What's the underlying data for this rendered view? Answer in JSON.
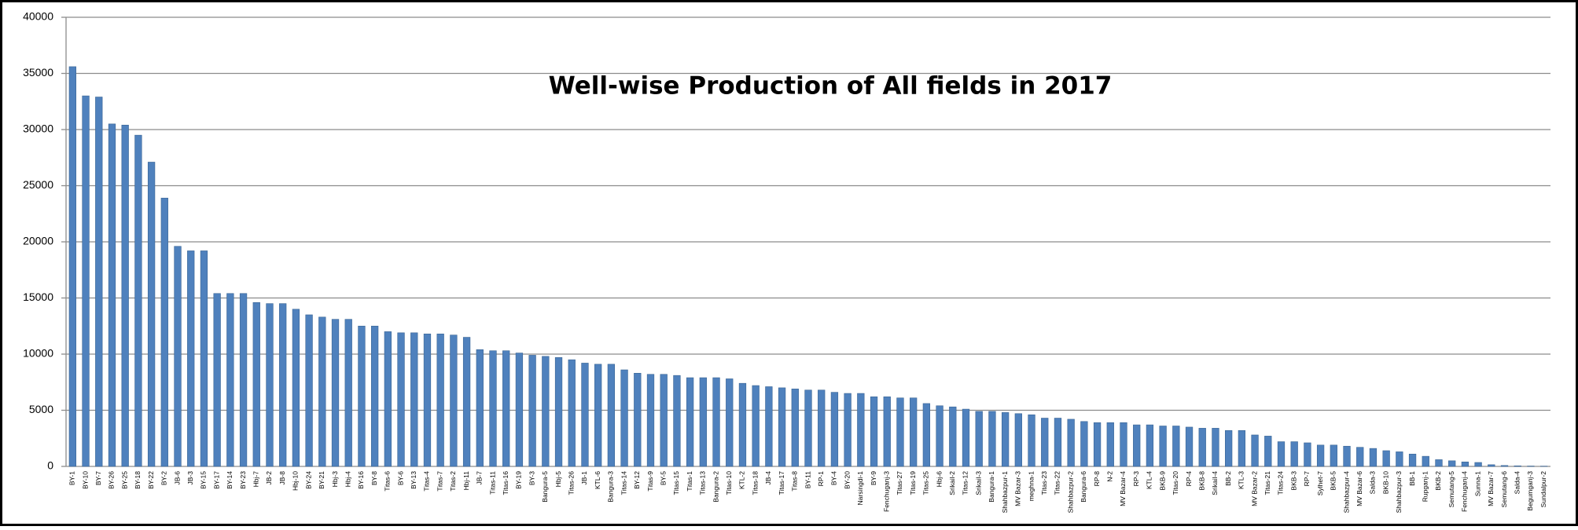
{
  "chart_data": {
    "type": "bar",
    "title": "Well-wise Production of All fields in 2017",
    "categories": [
      "BY-1",
      "BY-10",
      "BY-7",
      "BY-26",
      "BY-25",
      "BY-18",
      "BY-22",
      "BY-2",
      "JB-6",
      "JB-3",
      "BY-15",
      "BY-17",
      "BY-14",
      "BY-23",
      "Hbj-7",
      "JB-2",
      "JB-8",
      "Hbj-10",
      "BY-24",
      "BY-21",
      "Hbj-3",
      "Hbj-4",
      "BY-16",
      "BY-8",
      "Titas-6",
      "BY-6",
      "BY-13",
      "Titas-4",
      "Titas-7",
      "Titas-2",
      "Hbj-11",
      "JB-7",
      "Titas-11",
      "Titas-16",
      "BY-19",
      "BY-3",
      "Bangura-5",
      "Hbj-5",
      "Titas-26",
      "JB-1",
      "KTL-6",
      "Bangura-3",
      "Titas-14",
      "BY-12",
      "Titas-9",
      "BY-5",
      "Titas-15",
      "Titas-1",
      "Titas-13",
      "Bangura-2",
      "Titas-10",
      "KTL-2",
      "Titas-18",
      "JB-4",
      "Titas-17",
      "Titas-8",
      "BY-11",
      "RP-1",
      "BY-4",
      "BY-20",
      "Narsingdi-1",
      "BY-9",
      "Fenchuganj-3",
      "Titas-27",
      "Titas-19",
      "Titas-25",
      "Hbj-6",
      "Srikail-2",
      "Titas-12",
      "Srikail-3",
      "Bangura-1",
      "Shahbazpur-1",
      "MV Bazar-3",
      "meghna-1",
      "Titas-23",
      "Titas-22",
      "Shahbazpur-2",
      "Bangura-6",
      "RP-8",
      "N-2",
      "MV Bazar-4",
      "RP-3",
      "KTL-4",
      "BKB-9",
      "Titas-20",
      "RP-4",
      "BKB-8",
      "Srikail-4",
      "BB-2",
      "KTL-3",
      "MV Bazar-2",
      "Titas-21",
      "Titas-24",
      "BKB-3",
      "RP-7",
      "Sylhet-7",
      "BKB-5",
      "Shahbazpur-4",
      "MV Bazar-6",
      "Salda-3",
      "BKB-10",
      "Shahbazpur-3",
      "BB-1",
      "Rupganj-1",
      "BKB-2",
      "Semutang-5",
      "Fenchuganj-4",
      "Sunna-1",
      "MV Bazar-7",
      "Semutang-6",
      "Salda-4",
      "Begumganj-3",
      "Sundalpur-2"
    ],
    "values": [
      35600,
      33000,
      32900,
      30500,
      30400,
      29500,
      27100,
      23900,
      19600,
      19200,
      19200,
      15400,
      15400,
      15400,
      14600,
      14500,
      14500,
      14000,
      13500,
      13300,
      13100,
      13100,
      12500,
      12500,
      12000,
      11900,
      11900,
      11800,
      11800,
      11700,
      11500,
      10400,
      10300,
      10300,
      10100,
      9900,
      9800,
      9700,
      9500,
      9200,
      9100,
      9100,
      8600,
      8300,
      8200,
      8200,
      8100,
      7900,
      7900,
      7900,
      7800,
      7400,
      7200,
      7100,
      7000,
      6900,
      6800,
      6800,
      6600,
      6500,
      6500,
      6200,
      6200,
      6100,
      6100,
      5600,
      5400,
      5300,
      5100,
      4900,
      4900,
      4800,
      4700,
      4600,
      4300,
      4300,
      4200,
      4000,
      3900,
      3900,
      3900,
      3700,
      3700,
      3600,
      3600,
      3500,
      3400,
      3400,
      3200,
      3200,
      2800,
      2700,
      2200,
      2200,
      2100,
      1900,
      1900,
      1800,
      1700,
      1600,
      1400,
      1300,
      1100,
      900,
      600,
      500,
      400,
      350,
      150,
      80,
      50,
      30,
      20
    ],
    "color": "#4f81bd",
    "ylim": [
      0,
      40000
    ],
    "yticks": [
      0,
      5000,
      10000,
      15000,
      20000,
      25000,
      30000,
      35000,
      40000
    ],
    "grid": true
  }
}
